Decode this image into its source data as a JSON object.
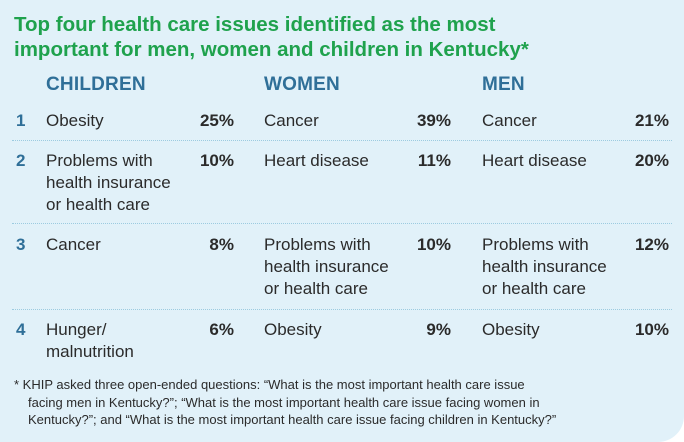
{
  "title": {
    "line1": "Top four health care issues identified as the most",
    "line2": "important for men, women and children in Kentucky",
    "asterisk": "*"
  },
  "columns": {
    "children": "CHILDREN",
    "women": "WOMEN",
    "men": "MEN"
  },
  "rows": [
    {
      "rank": "1",
      "children": {
        "issue": "Obesity",
        "pct": "25%"
      },
      "women": {
        "issue": "Cancer",
        "pct": "39%"
      },
      "men": {
        "issue": "Cancer",
        "pct": "21%"
      }
    },
    {
      "rank": "2",
      "children": {
        "issue_l1": "Problems with",
        "issue_l2": "health insurance",
        "issue_l3": "or health care",
        "pct": "10%"
      },
      "women": {
        "issue": "Heart disease",
        "pct": "11%"
      },
      "men": {
        "issue": "Heart disease",
        "pct": "20%"
      }
    },
    {
      "rank": "3",
      "children": {
        "issue": "Cancer",
        "pct": "8%"
      },
      "women": {
        "issue_l1": "Problems with",
        "issue_l2": "health insurance",
        "issue_l3": "or health care",
        "pct": "10%"
      },
      "men": {
        "issue_l1": "Problems with",
        "issue_l2": "health insurance",
        "issue_l3": "or health care",
        "pct": "12%"
      }
    },
    {
      "rank": "4",
      "children": {
        "issue_l1": "Hunger/",
        "issue_l2": "malnutrition",
        "pct": "6%"
      },
      "women": {
        "issue": "Obesity",
        "pct": "9%"
      },
      "men": {
        "issue": "Obesity",
        "pct": "10%"
      }
    }
  ],
  "footnote": {
    "line1": "* KHIP asked three open-ended questions: “What is the most important health care issue",
    "line2": "facing men in Kentucky?”; “What is the most important health care issue facing women in",
    "line3": "Kentucky?”; and “What is the most important health care issue facing children in Kentucky?”"
  },
  "colors": {
    "background": "#e1f1f9",
    "title_green": "#1fa24d",
    "header_blue": "#2f6f98",
    "text": "#2b2b2b"
  }
}
